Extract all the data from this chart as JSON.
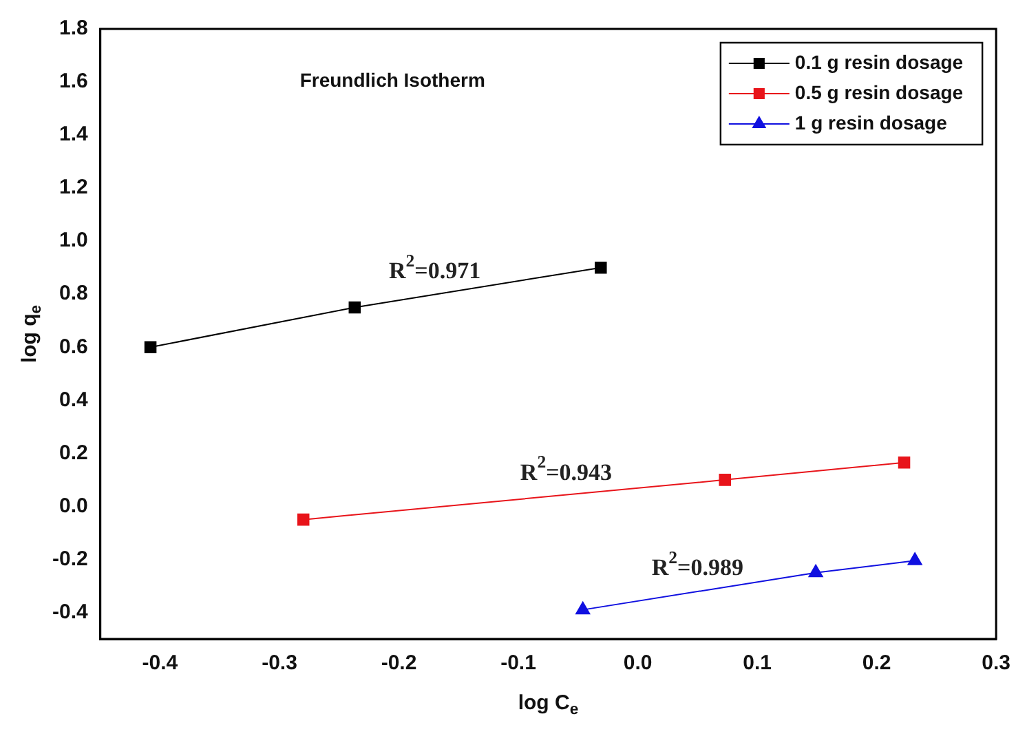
{
  "chart_data": {
    "type": "line",
    "title": "Freundlich Isotherm",
    "xlabel": "log C$_{e}$",
    "ylabel": "log q$_{e}$",
    "xlim": [
      -0.45,
      0.3
    ],
    "xticks": [
      -0.4,
      -0.3,
      -0.2,
      -0.1,
      {
        "value": 0,
        "label": "0.0"
      },
      0.1,
      0.2,
      0.3
    ],
    "ylim": [
      -0.5,
      1.8
    ],
    "yticks": [
      -0.4,
      -0.2,
      {
        "value": 0,
        "label": "0.0"
      },
      0.2,
      0.4,
      0.6,
      0.8,
      {
        "value": 1,
        "label": "1.0"
      },
      1.2,
      1.4,
      1.6,
      1.8
    ],
    "grid": false,
    "legend": "top right",
    "line_style": "solid",
    "series": [
      {
        "name": "0.1 g resin dosage",
        "color": "#000000",
        "marker": "square",
        "x": [
          -0.408,
          -0.237,
          -0.031
        ],
        "values": [
          0.6,
          0.75,
          0.9
        ]
      },
      {
        "name": "0.5 g resin dosage",
        "color": "#e8141a",
        "marker": "square",
        "x": [
          -0.28,
          0.073,
          0.223
        ],
        "values": [
          -0.05,
          0.1,
          0.165
        ]
      },
      {
        "name": "1 g resin dosage",
        "color": "#1010e0",
        "marker": "triangle",
        "x": [
          -0.046,
          0.149,
          0.232
        ],
        "values": [
          -0.39,
          -0.25,
          -0.205
        ]
      }
    ],
    "annotations": [
      {
        "text": "R$^{2}$=0.971",
        "x": -0.17,
        "y": 0.8
      },
      {
        "text": "R$^{2}$=0.943",
        "x": -0.06,
        "y": 0.04
      },
      {
        "text": "R$^{2}$=0.989",
        "x": 0.05,
        "y": -0.32
      }
    ]
  }
}
